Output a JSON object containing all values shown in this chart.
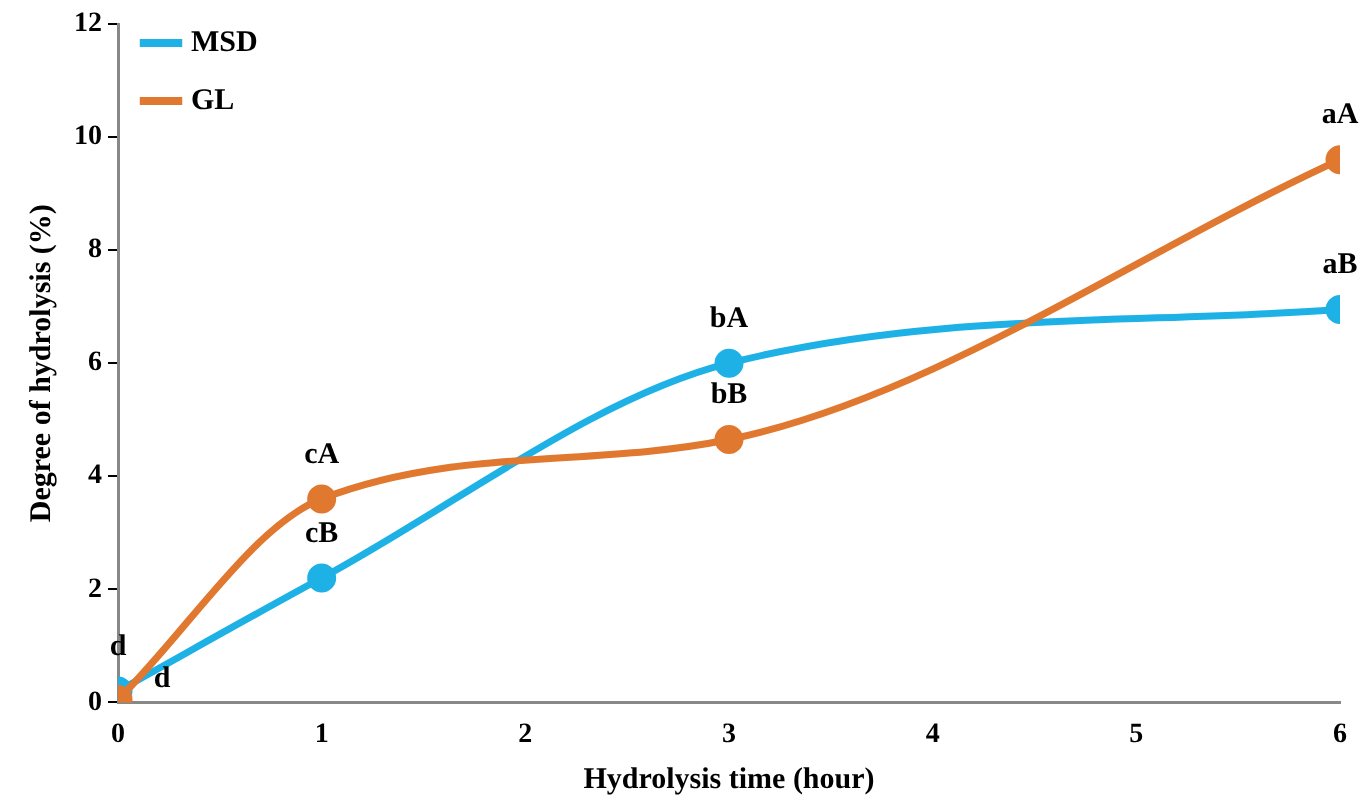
{
  "chart_data": {
    "type": "line",
    "xlabel": "Hydrolysis time (hour)",
    "ylabel": "Degree of hydrolysis (%)",
    "x": [
      0,
      1,
      3,
      6
    ],
    "series": [
      {
        "name": "MSD",
        "color": "#1eb1e6",
        "values": [
          0.2,
          2.2,
          6.0,
          6.95
        ]
      },
      {
        "name": "GL",
        "color": "#e0782f",
        "values": [
          0.05,
          3.6,
          4.65,
          9.6
        ]
      }
    ],
    "xlim": [
      0,
      6
    ],
    "xticks": [
      0,
      1,
      2,
      3,
      4,
      5,
      6
    ],
    "ylim": [
      0,
      12
    ],
    "yticks": [
      0,
      2,
      4,
      6,
      8,
      10,
      12
    ],
    "grid": false,
    "legend": "top left",
    "marker": "circle",
    "line_style": "solid",
    "annotations": [
      {
        "text": "d",
        "x": 0,
        "y": 0.2
      },
      {
        "text": "d",
        "x": 0,
        "y": 0.05
      },
      {
        "text": "cA",
        "x": 1,
        "y": 3.6
      },
      {
        "text": "cB",
        "x": 1,
        "y": 2.2
      },
      {
        "text": "bA",
        "x": 3,
        "y": 6.0
      },
      {
        "text": "bB",
        "x": 3,
        "y": 4.65
      },
      {
        "text": "aA",
        "x": 6,
        "y": 9.6
      },
      {
        "text": "aB",
        "x": 6,
        "y": 6.95
      }
    ]
  }
}
